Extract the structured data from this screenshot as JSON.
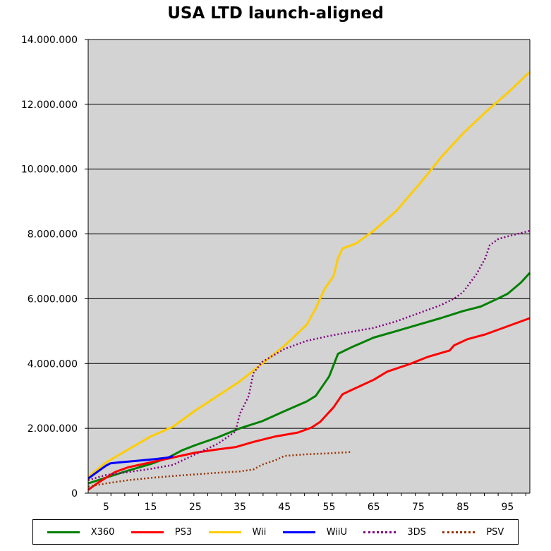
{
  "chart_data": {
    "type": "line",
    "title": "USA LTD launch-aligned",
    "xlabel": "",
    "ylabel": "",
    "xlim": [
      1,
      100
    ],
    "ylim": [
      0,
      14000000
    ],
    "x_ticks": [
      5,
      15,
      25,
      35,
      45,
      55,
      65,
      75,
      85,
      95
    ],
    "x_tick_labels": [
      "5",
      "15",
      "25",
      "35",
      "45",
      "55",
      "65",
      "75",
      "85",
      "95"
    ],
    "y_ticks": [
      0,
      2000000,
      4000000,
      6000000,
      8000000,
      10000000,
      12000000,
      14000000
    ],
    "y_tick_labels": [
      "0",
      "2.000.000",
      "4.000.000",
      "6.000.000",
      "8.000.000",
      "10.000.000",
      "12.000.000",
      "14.000.000"
    ],
    "grid": "horizontal",
    "background": "#d3d3d3",
    "legend_position": "bottom",
    "series": [
      {
        "name": "X360",
        "color": "#008000",
        "style": "solid",
        "points": [
          [
            1,
            300000
          ],
          [
            5,
            480000
          ],
          [
            10,
            700000
          ],
          [
            15,
            900000
          ],
          [
            19,
            1100000
          ],
          [
            22,
            1320000
          ],
          [
            25,
            1480000
          ],
          [
            30,
            1720000
          ],
          [
            35,
            2000000
          ],
          [
            40,
            2220000
          ],
          [
            45,
            2530000
          ],
          [
            50,
            2830000
          ],
          [
            52,
            3000000
          ],
          [
            55,
            3600000
          ],
          [
            57,
            4300000
          ],
          [
            60,
            4500000
          ],
          [
            65,
            4800000
          ],
          [
            70,
            5000000
          ],
          [
            75,
            5200000
          ],
          [
            80,
            5400000
          ],
          [
            85,
            5620000
          ],
          [
            89,
            5760000
          ],
          [
            92,
            5950000
          ],
          [
            95,
            6150000
          ],
          [
            98,
            6500000
          ],
          [
            100,
            6800000
          ]
        ]
      },
      {
        "name": "PS3",
        "color": "#ff0000",
        "style": "solid",
        "points": [
          [
            1,
            100000
          ],
          [
            3,
            300000
          ],
          [
            7,
            650000
          ],
          [
            10,
            800000
          ],
          [
            15,
            950000
          ],
          [
            20,
            1100000
          ],
          [
            25,
            1250000
          ],
          [
            30,
            1350000
          ],
          [
            34,
            1420000
          ],
          [
            38,
            1580000
          ],
          [
            43,
            1750000
          ],
          [
            48,
            1870000
          ],
          [
            51,
            2020000
          ],
          [
            53,
            2200000
          ],
          [
            56,
            2650000
          ],
          [
            58,
            3050000
          ],
          [
            60,
            3180000
          ],
          [
            65,
            3500000
          ],
          [
            68,
            3750000
          ],
          [
            73,
            3980000
          ],
          [
            77,
            4200000
          ],
          [
            82,
            4400000
          ],
          [
            83,
            4560000
          ],
          [
            86,
            4750000
          ],
          [
            90,
            4900000
          ],
          [
            95,
            5150000
          ],
          [
            100,
            5400000
          ]
        ]
      },
      {
        "name": "Wii",
        "color": "#ffcc00",
        "style": "solid",
        "points": [
          [
            1,
            500000
          ],
          [
            5,
            950000
          ],
          [
            10,
            1350000
          ],
          [
            15,
            1750000
          ],
          [
            20,
            2050000
          ],
          [
            25,
            2550000
          ],
          [
            30,
            3000000
          ],
          [
            35,
            3450000
          ],
          [
            40,
            4000000
          ],
          [
            45,
            4550000
          ],
          [
            50,
            5200000
          ],
          [
            52,
            5700000
          ],
          [
            54,
            6300000
          ],
          [
            56,
            6700000
          ],
          [
            57,
            7250000
          ],
          [
            58,
            7550000
          ],
          [
            61,
            7700000
          ],
          [
            65,
            8100000
          ],
          [
            70,
            8700000
          ],
          [
            75,
            9500000
          ],
          [
            78,
            10000000
          ],
          [
            80,
            10350000
          ],
          [
            85,
            11100000
          ],
          [
            90,
            11750000
          ],
          [
            95,
            12350000
          ],
          [
            100,
            13000000
          ]
        ]
      },
      {
        "name": "WiiU",
        "color": "#0000ff",
        "style": "solid",
        "points": [
          [
            1,
            450000
          ],
          [
            3,
            650000
          ],
          [
            5,
            850000
          ],
          [
            6,
            920000
          ],
          [
            8,
            950000
          ],
          [
            12,
            1000000
          ],
          [
            16,
            1050000
          ],
          [
            19,
            1100000
          ],
          [
            20,
            1140000
          ]
        ]
      },
      {
        "name": "3DS",
        "color": "#800080",
        "style": "dotted",
        "points": [
          [
            1,
            400000
          ],
          [
            5,
            560000
          ],
          [
            10,
            650000
          ],
          [
            15,
            750000
          ],
          [
            20,
            870000
          ],
          [
            25,
            1200000
          ],
          [
            30,
            1520000
          ],
          [
            34,
            1900000
          ],
          [
            35,
            2450000
          ],
          [
            37,
            3000000
          ],
          [
            38,
            3700000
          ],
          [
            40,
            4050000
          ],
          [
            45,
            4450000
          ],
          [
            50,
            4700000
          ],
          [
            55,
            4850000
          ],
          [
            60,
            4980000
          ],
          [
            65,
            5100000
          ],
          [
            70,
            5300000
          ],
          [
            75,
            5550000
          ],
          [
            80,
            5800000
          ],
          [
            83,
            6000000
          ],
          [
            85,
            6200000
          ],
          [
            88,
            6750000
          ],
          [
            90,
            7250000
          ],
          [
            91,
            7650000
          ],
          [
            93,
            7850000
          ],
          [
            95,
            7920000
          ],
          [
            100,
            8100000
          ]
        ]
      },
      {
        "name": "PSV",
        "color": "#993300",
        "style": "dotted",
        "points": [
          [
            1,
            200000
          ],
          [
            5,
            300000
          ],
          [
            10,
            400000
          ],
          [
            15,
            470000
          ],
          [
            20,
            530000
          ],
          [
            25,
            580000
          ],
          [
            30,
            630000
          ],
          [
            35,
            670000
          ],
          [
            38,
            730000
          ],
          [
            40,
            880000
          ],
          [
            43,
            1020000
          ],
          [
            45,
            1150000
          ],
          [
            50,
            1200000
          ],
          [
            55,
            1230000
          ],
          [
            60,
            1270000
          ]
        ]
      }
    ]
  }
}
